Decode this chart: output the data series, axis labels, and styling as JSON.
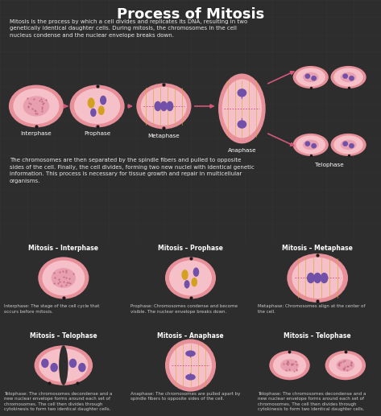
{
  "title": "Process of Mitosis",
  "bg_color": "#2d2d2d",
  "panel_bg": "#323232",
  "title_color": "#ffffff",
  "text_color": "#e8e8e8",
  "outer_c": "#e8909a",
  "inner_c": "#f5c0c8",
  "nuc_c": "#e8a0b0",
  "chrom_yellow": "#d4a020",
  "chrom_purple": "#7050a8",
  "spindle_c": "#d4a820",
  "arrow_c": "#d05878",
  "intro_text": "Mitosis is the process by which a cell divides and replicates its DNA, resulting in two\ngenetically identical daughter cells. During mitosis, the chromosomes in the cell\nnucleus condense and the nuclear envelope breaks down.",
  "body_text": "The chromosomes are then separated by the spindle fibers and pulled to opposite\nsides of the cell. Finally, the cell divides, forming two new nuclei with identical genetic\ninformation. This process is necessary for tissue growth and repair in multicellular\norganisms.",
  "phases": [
    "Interphase",
    "Prophase",
    "Metaphase",
    "Anaphase",
    "Telophase"
  ],
  "panels": [
    {
      "title": "Mitosis – Interphase",
      "desc": "Interphase: The stage of the cell cycle that\noccurs before mitosis."
    },
    {
      "title": "Mitosis – Prophase",
      "desc": "Prophase: Chromosomes condense and become\nvisible. The nuclear envelope breaks down."
    },
    {
      "title": "Mitosis – Metaphase",
      "desc": "Metaphase: Chromosomes align at the center of\nthe cell."
    },
    {
      "title": "Mitosis – Telophase",
      "desc": "Telophase: The chromosomes decondense and a\nnew nuclear envelope forms around each set of\nchromosomes. The cell then divides through\ncytokinesis to form two identical daughter cells."
    },
    {
      "title": "Mitosis – Anaphase",
      "desc": "Anaphase: The chromosomes are pulled apart by\nspindle fibers to opposite sides of the cell."
    },
    {
      "title": "Mitosis – Telophase",
      "desc": "Telophase: The chromosomes decondense and a\nnew nuclear envelope forms around each set of\nchromosomes. The cell then divides through\ncytokinesis to form two identical daughter cells."
    }
  ]
}
